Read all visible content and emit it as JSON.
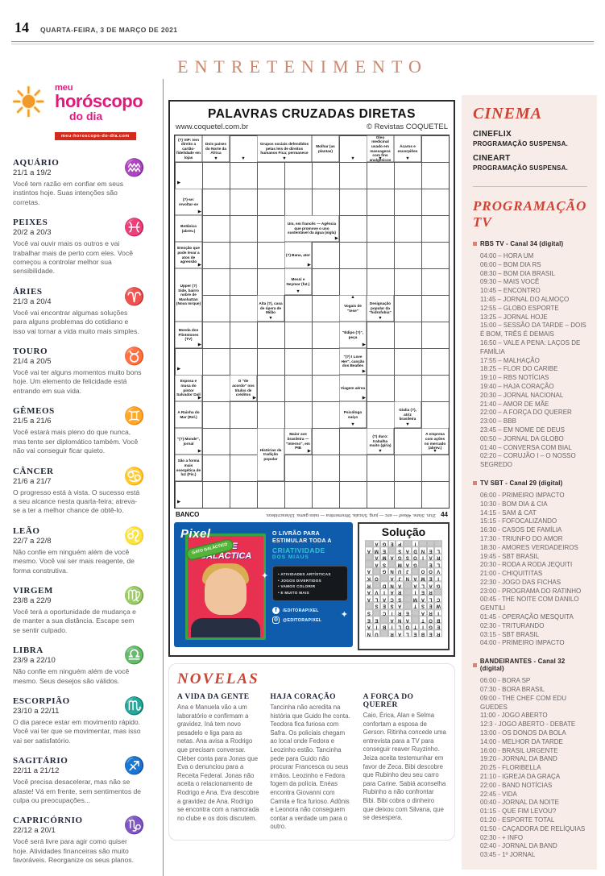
{
  "header": {
    "page_number": "14",
    "date": "QUARTA-FEIRA, 3 DE MARÇO DE 2021"
  },
  "section_title": "ENTRETENIMENTO",
  "horoscope": {
    "logo": {
      "meu": "meu",
      "main": "horóscopo",
      "dodia": "do dia",
      "url": "meu-horoscopo-do-dia.com"
    },
    "signs": [
      {
        "name": "AQUÁRIO",
        "dates": "21/1 a 19/2",
        "glyph": "♒",
        "text": "Você tem razão em confiar em seus instintos hoje. Suas intenções são corretas."
      },
      {
        "name": "PEIXES",
        "dates": "20/2 a 20/3",
        "glyph": "♓",
        "text": "Você vai ouvir mais os outros e vai trabalhar mais de perto com eles. Você começou a controlar melhor sua sensibilidade."
      },
      {
        "name": "ÁRIES",
        "dates": "21/3 a 20/4",
        "glyph": "♈",
        "text": "Você vai encontrar algumas soluções para alguns problemas do cotidiano e isso vai tornar a vida muito mais simples."
      },
      {
        "name": "TOURO",
        "dates": "21/4 a 20/5",
        "glyph": "♉",
        "text": "Você vai ter alguns momentos muito bons hoje. Um elemento de felicidade está entrando em sua vida."
      },
      {
        "name": "GÊMEOS",
        "dates": "21/5 a 21/6",
        "glyph": "♊",
        "text": "Você estará mais pleno do que nunca, mas tente ser diplomático também. Você não vai conseguir ficar quieto."
      },
      {
        "name": "CÂNCER",
        "dates": "21/6 a 21/7",
        "glyph": "♋",
        "text": "O progresso está à vista. O sucesso está a seu alcance nesta quarta-feira; atreva-se a ter a melhor chance de obtê-lo."
      },
      {
        "name": "LEÃO",
        "dates": "22/7 a 22/8",
        "glyph": "♌",
        "text": "Não confie em ninguém além de você mesmo. Você vai ser mais reagente, de forma construtiva."
      },
      {
        "name": "VIRGEM",
        "dates": "23/8 a 22/9",
        "glyph": "♍",
        "text": "Você terá a oportunidade de mudança e de manter a sua distância. Escape sem se sentir culpado."
      },
      {
        "name": "LIBRA",
        "dates": "23/9 a 22/10",
        "glyph": "♎",
        "text": "Não confie em ninguém além de você mesmo. Seus desejos são válidos."
      },
      {
        "name": "ESCORPIÃO",
        "dates": "23/10 a 22/11",
        "glyph": "♏",
        "text": "O dia parece estar em movimento rápido. Você vai ter que se movimentar, mas isso vai ser satisfatório."
      },
      {
        "name": "SAGITÁRIO",
        "dates": "22/11 a 21/12",
        "glyph": "♐",
        "text": "Você precisa desacelerar, mas não se afaste! Vá em frente, sem sentimentos de culpa ou preocupações..."
      },
      {
        "name": "CAPRICÓRNIO",
        "dates": "22/12 a 20/1",
        "glyph": "♑",
        "text": "Você será livre para agir como quiser hoje. Atividades financeiras são muito favoráveis. Reorganize os seus planos."
      }
    ]
  },
  "crossword": {
    "title": "PALAVRAS CRUZADAS DIRETAS",
    "url": "www.coquetel.com.br",
    "copyright": "© Revistas COQUETEL",
    "banco_label": "BANCO",
    "banco_text": "2/un. 3/ane. 4/keef — eric — jung. 5/scala. 9/trementina — raios gama. 10/aracnídeos.",
    "number": "44",
    "cells": [
      {
        "c": 1,
        "r": 1,
        "t": "(?) VIP: tem direito a cartão-fidelidade em lojas"
      },
      {
        "c": 2,
        "r": 1,
        "t": "Dois países do Norte da África",
        "a": "d"
      },
      {
        "c": 3,
        "r": 1,
        "t": "",
        "a": "d"
      },
      {
        "c": 4,
        "r": 1,
        "w": 2,
        "t": "Grupos sociais defendidos pelas leis de direitos humanos Fica; permanece",
        "a": "d"
      },
      {
        "c": 6,
        "r": 1,
        "t": "Molhar (as plantas)"
      },
      {
        "c": 7,
        "r": 1,
        "t": "",
        "a": "d"
      },
      {
        "c": 8,
        "r": 1,
        "t": "Óleo medicinal usado em massagens com fins analgésicos",
        "a": "d"
      },
      {
        "c": 9,
        "r": 1,
        "t": "Ácaros e escorpiões",
        "a": "d"
      },
      {
        "c": 1,
        "r": 2,
        "t": "",
        "a": "r"
      },
      {
        "c": 1,
        "r": 3,
        "t": "(?)-se: revoltar-se",
        "a": "r"
      },
      {
        "c": 1,
        "r": 4,
        "t": "Botânica (abrev.)"
      },
      {
        "c": 5,
        "r": 4,
        "w": 2,
        "t": "Um, em francês — Agência que promove o uso sustentável da água (sigla)",
        "a": "r"
      },
      {
        "c": 1,
        "r": 5,
        "t": "Emoção que pode levar a atos de agressão",
        "a": "r"
      },
      {
        "c": 5,
        "r": 5,
        "t": "(?) Bana, ator",
        "a": "r"
      },
      {
        "c": 1,
        "r": 6,
        "h": 2,
        "t": "Upper (?) Side, bairro nobre de Manhattan (Nova Iorque)"
      },
      {
        "c": 5,
        "r": 6,
        "t": "Messi e Neymar (fut.)",
        "a": "d"
      },
      {
        "c": 4,
        "r": 7,
        "t": "Alta (?), casa de ópera de Milão",
        "a": "d"
      },
      {
        "c": 7,
        "r": 7,
        "t": "Vogais de \"tese\"",
        "a": "u"
      },
      {
        "c": 8,
        "r": 7,
        "t": "Designação popular da \"hidrofobia\"",
        "a": "d"
      },
      {
        "c": 1,
        "r": 8,
        "t": "Moeda dos Flintstones (TV)",
        "a": "r"
      },
      {
        "c": 7,
        "r": 8,
        "t": "\"Édipo (?)\", peça",
        "a": "r"
      },
      {
        "c": 1,
        "r": 9,
        "t": "",
        "a": "r"
      },
      {
        "c": 7,
        "r": 9,
        "t": "\"(?) I Love Her\", canção dos Beatles",
        "a": "r"
      },
      {
        "c": 1,
        "r": 10,
        "t": "Esposa e musa do pintor Salvador Dalí",
        "a": "r"
      },
      {
        "c": 3,
        "r": 10,
        "t": "O \"de acordo\" nos títulos de créditos",
        "a": "r"
      },
      {
        "c": 7,
        "r": 10,
        "t": "Viagem aérea",
        "a": "r"
      },
      {
        "c": 1,
        "r": 11,
        "t": "A Rainha do Mar (Rel.)"
      },
      {
        "c": 7,
        "r": 11,
        "t": "Psicólogo suíço",
        "a": "d"
      },
      {
        "c": 9,
        "r": 11,
        "t": "Giulia (?), atriz brasileira",
        "a": "d"
      },
      {
        "c": 1,
        "r": 12,
        "t": "\"(?) Monde\", jornal",
        "a": "r"
      },
      {
        "c": 4,
        "r": 12,
        "h": 2,
        "t": "Histórias da tradição popular"
      },
      {
        "c": 5,
        "r": 12,
        "t": "Maior ave brasileira — \"Interno\", em PIB",
        "a": "r"
      },
      {
        "c": 8,
        "r": 12,
        "t": "(?) duro: trabalha muito (gíria)",
        "a": "d"
      },
      {
        "c": 10,
        "r": 12,
        "t": "A empresa com ações no mercado (abrev.)",
        "a": "d"
      },
      {
        "c": 1,
        "r": 13,
        "t": "São a forma mais energética de luz (Fís.)"
      },
      {
        "c": 1,
        "r": 14,
        "t": "",
        "a": "r"
      }
    ],
    "solution": {
      "title": "Solução",
      "rows": [
        "REBELAR.UN",
        "EGITOLIBIA",
        "BOT.ANA.EE",
        "IRA.ERIC.S",
        "WEST.ASES.",
        "CLAM.SCALA",
        ".REI.RAIVA",
        "GALA.AND.R",
        "IEMANJA.OK",
        "VOO.JUNG.A",
        "LE.GAM.SA.",
        "RAIOSGAMA.",
        "LENDAS.EMA",
        "...I.PEGA."
      ]
    }
  },
  "pixel_ad": {
    "brand": "Pixel",
    "badge": "GATO GALÁCTICO",
    "book_title": "ARTE GALÁCTICA",
    "headline_1": "O LIVRÃO PARA ESTIMULAR TODA A",
    "headline_2": "CRIATIVIDADE",
    "headline_3": "DOS MIAUS",
    "bullets": [
      "• ATIVIDADES ARTÍSTICAS",
      "• JOGOS DIVERTIDOS",
      "• VAMOS COLORIR",
      "• E MUITO MAIS"
    ],
    "social_fb": "/EDITORAPIXEL",
    "social_ig": "@EDITORAPIXEL"
  },
  "novelas": {
    "title": "NOVELAS",
    "shows": [
      {
        "name": "A VIDA DA GENTE",
        "text": "Ana e Manuela vão a um laboratório e confirmam a gravidez. Iná tem novo pesadelo e liga para as netas. Ana avisa a Rodrigo que precisam conversar. Cléber conta para Jonas que Eva o denunciou para a Receita Federal. Jonas não aceita o relacionamento de Rodrigo e Ana. Eva descobre a gravidez de Ana. Rodrigo se encontra com a namorada no clube e os dois discutem."
      },
      {
        "name": "HAJA CORAÇÃO",
        "text": "Tancinha não acredita na história que Guido lhe conta. Teodora fica furiosa com Safra. Os policiais chegam ao local onde Fedora e Leozinho estão. Tancinha pede para Guido não procurar Francesca ou seus irmãos. Leozinho e Fedora fogem da polícia. Enéas encontra Giovanni com Camila e fica furioso. Adônis e Leonora não conseguem contar a verdade um para o outro."
      },
      {
        "name": "A FORÇA DO QUERER",
        "text": "Caio, Érica, Alan e Selma confortam a esposa de Gerson. Ritinha concede uma entrevista para a TV para conseguir reaver Ruyzinho. Jeiza aceita testemunhar em favor de Zeca. Bibi descobre que Rubinho deu seu carro para Carine. Sabiá aconselha Rubinho a não confrontar Bibi. Bibi cobra o dinheiro que deixou com Silvana, que se desespera."
      }
    ]
  },
  "cinema": {
    "title": "CINEMA",
    "entries": [
      {
        "name": "CINEFLIX",
        "status": "PROGRAMAÇÃO SUSPENSA."
      },
      {
        "name": "CINEART",
        "status": "PROGRAMAÇÃO SUSPENSA."
      }
    ]
  },
  "tv": {
    "title": "PROGRAMAÇÃO TV",
    "channels": [
      {
        "name": "RBS TV - Canal 34 (digital)",
        "shows": [
          "04:00 – HORA UM",
          "06:00 – BOM DIA RS",
          "08:30 – BOM DIA BRASIL",
          "09:30 – MAIS VOCÊ",
          "10:45 – ENCONTRO",
          "11:45 – JORNAL DO ALMOÇO",
          "12:55 – GLOBO ESPORTE",
          "13:25 – JORNAL HOJE",
          "15:00 – SESSÃO DA TARDE – DOIS É BOM, TRÊS É DEMAIS",
          "16:50 – VALE A PENA: LAÇOS DE FAMÍLIA",
          "17:55 – MALHAÇÃO",
          "18:25 – FLOR DO CARIBE",
          "19:10 – RBS NOTÍCIAS",
          "19:40 – HAJA CORAÇÃO",
          "20:30 – JORNAL NACIONAL",
          "21:40 – AMOR DE MÃE",
          "22:00 – A FORÇA DO QUERER",
          "23:00 – BBB",
          "23:45 – EM NOME DE DEUS",
          "00:50 – JORNAL DA GLOBO",
          "01:40 – CONVERSA COM BIAL",
          "02:20 – CORUJÃO I – O NOSSO SEGREDO"
        ]
      },
      {
        "name": "TV SBT - Canal 29 (digital)",
        "shows": [
          "06:00 - PRIMEIRO IMPACTO",
          "10:30 - BOM DIA & CIA",
          "14:15 - SAM & CAT",
          "15:15 - FOFOCALIZANDO",
          "16:30 - CASOS DE FAMÍLIA",
          "17:30 - TRIUNFO DO AMOR",
          "18:30 - AMORES VERDADEIROS",
          "19:45 - SBT BRASIL",
          "20:30 - RODA A RODA JEQUITI",
          "21:00 - CHIQUITITAS",
          "22:30 - JOGO DAS FICHAS",
          "23:00 - PROGRAMA DO RATINHO",
          "00:45 - THE NOITE COM DANILO GENTILI",
          "01:45 - OPERAÇÃO MESQUITA",
          "02:30 - TRITURANDO",
          "03:15 - SBT BRASIL",
          "04:00 - PRIMEIRO IMPACTO"
        ]
      },
      {
        "name": "BANDEIRANTES - Canal 32 (digital)",
        "shows": [
          "06:00 - BORA SP",
          "07:30 - BORA BRASIL",
          "09:00 - THE CHEF COM EDU GUEDES",
          "11:00 - JOGO ABERTO",
          "12:3 - JOGO ABERTO - DEBATE",
          "13:00 - OS DONOS DA BOLA",
          "14:00 - MELHOR DA TARDE",
          "16:00 - BRASIL URGENTE",
          "19:20 - JORNAL DA BAND",
          "20:25 - FLORIBELLA",
          "21:10 - IGREJA DA GRAÇA",
          "22:00 - BAND NOTÍCIAS",
          "22:45 - VIDA",
          "00:40 - JORNAL DA NOITE",
          "01:15 - QUE FIM LEVOU?",
          "01:20 - ESPORTE TOTAL",
          "01:50 - CAÇADORA DE RELÍQUIAS",
          "02:30 - + INFO",
          "02:40 - JORNAL DA BAND",
          "03:45 - 1º JORNAL"
        ]
      }
    ]
  }
}
